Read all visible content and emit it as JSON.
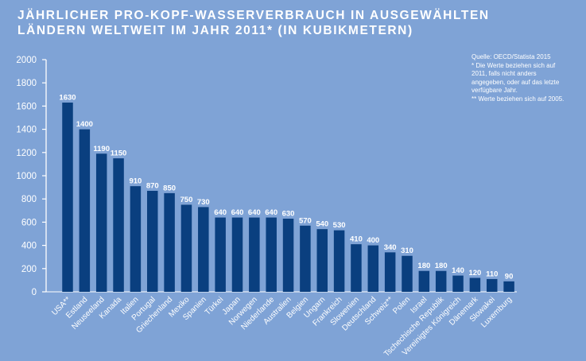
{
  "title_line1": "Jährlicher Pro-Kopf-Wasserverbrauch in ausgewählten",
  "title_line2": "Ländern weltweit im Jahr 2011* (in Kubikmetern)",
  "source_notes": [
    "Quelle: OECD/Statista 2015",
    "* Die Werte beziehen sich auf 2011, falls nicht anders angegeben, oder auf das letzte verfügbare Jahr.",
    "** Werte beziehen sich auf 2005."
  ],
  "colors": {
    "background": "#7fa3d6",
    "bar": "#0a3f7f",
    "text": "#ffffff"
  },
  "chart_data": {
    "type": "bar",
    "title": "Jährlicher Pro-Kopf-Wasserverbrauch in ausgewählten Ländern weltweit im Jahr 2011* (in Kubikmetern)",
    "categories": [
      "USA**",
      "Estland",
      "Neuseeland",
      "Kanada",
      "Italien",
      "Portugal",
      "Griechenland",
      "Mexiko",
      "Spanien",
      "Türkei",
      "Japan",
      "Norwegen",
      "Niederlande",
      "Australien",
      "Belgien",
      "Ungarn",
      "Frankreich",
      "Slowenien",
      "Deutschland",
      "Schweiz**",
      "Polen",
      "Israel",
      "Tschechische Republik",
      "Vereinigtes Königreich",
      "Dänemark",
      "Slowakei",
      "Luxemburg"
    ],
    "values": [
      1630,
      1400,
      1190,
      1150,
      910,
      870,
      850,
      750,
      730,
      640,
      640,
      640,
      640,
      630,
      570,
      540,
      530,
      410,
      400,
      340,
      310,
      180,
      180,
      140,
      120,
      110,
      90
    ],
    "value_labels": [
      "1630",
      "1400",
      "1190",
      "1150",
      "910",
      "870",
      "850",
      "750",
      "730",
      "640",
      "640",
      "640",
      "640",
      "630",
      "570",
      "540",
      "530",
      "410",
      "400",
      "340",
      "310",
      "180",
      "180",
      "140",
      "120",
      "110",
      "90"
    ],
    "ylim": [
      0,
      2000
    ],
    "yticks": [
      "0",
      "200",
      "400",
      "600",
      "800",
      "1000",
      "1200",
      "1400",
      "1600",
      "1800",
      "2000"
    ],
    "xlabel": "",
    "ylabel": "",
    "grid": false,
    "legend": "none"
  }
}
